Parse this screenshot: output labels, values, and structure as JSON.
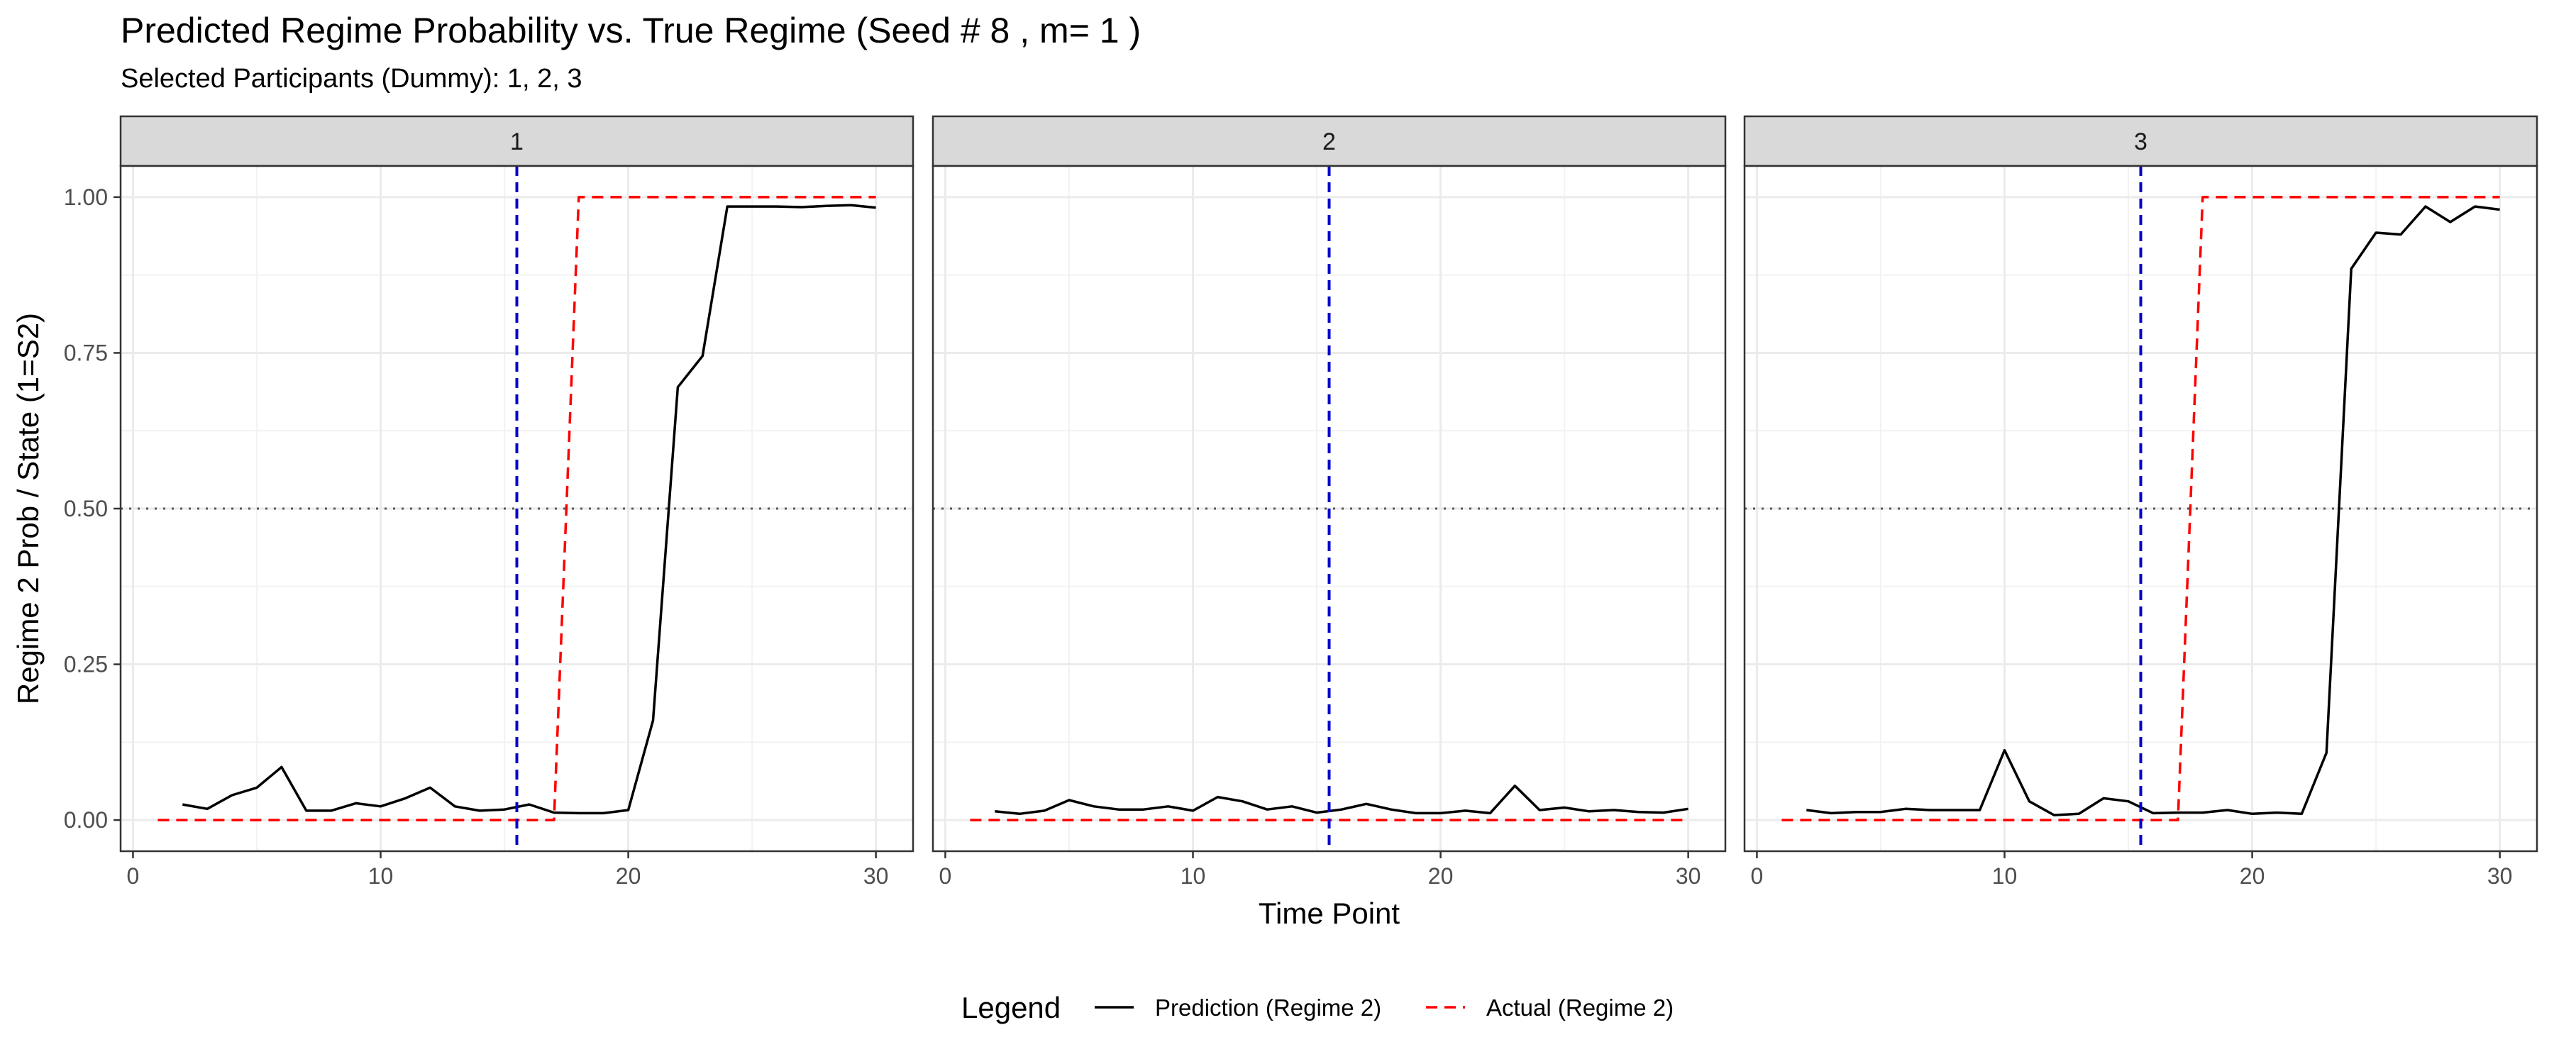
{
  "title": "Predicted Regime Probability vs. True Regime (Seed # 8 , m= 1 )",
  "subtitle": "Selected Participants (Dummy): 1, 2, 3",
  "chart_data": {
    "type": "line",
    "xlabel": "Time Point",
    "ylabel": "Regime 2 Prob / State (1=S2)",
    "xlim": [
      -0.5,
      31.5
    ],
    "ylim": [
      -0.05,
      1.05
    ],
    "x_ticks": [
      0,
      10,
      20,
      30
    ],
    "y_ticks": [
      0,
      0.25,
      0.5,
      0.75,
      1
    ],
    "y_tick_labels": [
      "0.00",
      "0.25",
      "0.50",
      "0.75",
      "1.00"
    ],
    "reference_lines": {
      "vertical_x": 15.5,
      "vertical_color": "#0000CC",
      "horizontal_y": 0.5,
      "horizontal_color": "#555555"
    },
    "grid": true,
    "legend": {
      "title": "Legend",
      "position": "bottom",
      "entries": [
        {
          "label": "Prediction (Regime 2)",
          "color": "#000000",
          "dash": "solid"
        },
        {
          "label": "Actual (Regime 2)",
          "color": "#FF0000",
          "dash": "dashed"
        }
      ]
    },
    "panels": [
      {
        "strip": "1",
        "series": [
          {
            "name": "Prediction (Regime 2)",
            "x": [
              2,
              3,
              4,
              5,
              6,
              7,
              8,
              9,
              10,
              11,
              12,
              13,
              14,
              15,
              16,
              17,
              18,
              19,
              20,
              21,
              22,
              23,
              24,
              25,
              26,
              27,
              28,
              29,
              30
            ],
            "y": [
              0.025,
              0.018,
              0.04,
              0.052,
              0.085,
              0.015,
              0.015,
              0.027,
              0.022,
              0.035,
              0.052,
              0.022,
              0.015,
              0.017,
              0.025,
              0.012,
              0.011,
              0.011,
              0.016,
              0.16,
              0.695,
              0.745,
              0.985,
              0.985,
              0.985,
              0.984,
              0.986,
              0.987,
              0.983
            ]
          },
          {
            "name": "Actual (Regime 2)",
            "x": [
              1,
              17,
              18,
              30
            ],
            "y": [
              0,
              0,
              1,
              1
            ]
          }
        ]
      },
      {
        "strip": "2",
        "series": [
          {
            "name": "Prediction (Regime 2)",
            "x": [
              2,
              3,
              4,
              5,
              6,
              7,
              8,
              9,
              10,
              11,
              12,
              13,
              14,
              15,
              16,
              17,
              18,
              19,
              20,
              21,
              22,
              23,
              24,
              25,
              26,
              27,
              28,
              29,
              30
            ],
            "y": [
              0.014,
              0.01,
              0.015,
              0.032,
              0.022,
              0.017,
              0.017,
              0.022,
              0.015,
              0.037,
              0.03,
              0.017,
              0.022,
              0.012,
              0.017,
              0.026,
              0.017,
              0.011,
              0.011,
              0.015,
              0.011,
              0.055,
              0.016,
              0.02,
              0.014,
              0.016,
              0.013,
              0.012,
              0.018
            ]
          },
          {
            "name": "Actual (Regime 2)",
            "x": [
              1,
              30
            ],
            "y": [
              0,
              0
            ]
          }
        ]
      },
      {
        "strip": "3",
        "series": [
          {
            "name": "Prediction (Regime 2)",
            "x": [
              2,
              3,
              4,
              5,
              6,
              7,
              8,
              9,
              10,
              11,
              12,
              13,
              14,
              15,
              16,
              17,
              18,
              19,
              20,
              21,
              22,
              23,
              24,
              25,
              26,
              27,
              28,
              29,
              30
            ],
            "y": [
              0.016,
              0.011,
              0.013,
              0.013,
              0.018,
              0.016,
              0.016,
              0.016,
              0.112,
              0.03,
              0.008,
              0.01,
              0.035,
              0.03,
              0.011,
              0.012,
              0.012,
              0.016,
              0.01,
              0.012,
              0.01,
              0.108,
              0.885,
              0.943,
              0.94,
              0.985,
              0.96,
              0.985,
              0.98
            ]
          },
          {
            "name": "Actual (Regime 2)",
            "x": [
              1,
              17,
              18,
              30
            ],
            "y": [
              0,
              0,
              1,
              1
            ]
          }
        ]
      }
    ]
  }
}
